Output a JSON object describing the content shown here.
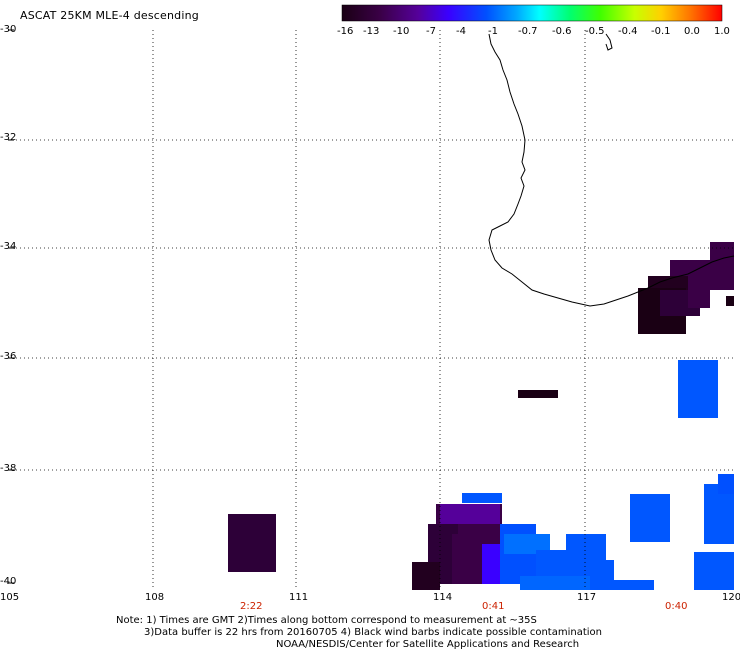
{
  "title": "ASCAT 25KM MLE-4 descending",
  "colorbar": {
    "labels": [
      "-16",
      "-13",
      "-10",
      "-7",
      "-4",
      "-1",
      "-0.7",
      "-0.6",
      "-0.5",
      "-0.4",
      "-0.1",
      "0.0",
      "1.0"
    ],
    "colors": [
      "#200010",
      "#3a0046",
      "#55009a",
      "#3a00ff",
      "#0050ff",
      "#00a8ff",
      "#00ffff",
      "#00ff70",
      "#40ff00",
      "#c8ff00",
      "#ffd000",
      "#ff7000",
      "#ff0000"
    ]
  },
  "axes": {
    "x_ticks": [
      "105",
      "108",
      "111",
      "114",
      "117",
      "120"
    ],
    "y_ticks": [
      "-30",
      "-32",
      "-34",
      "-36",
      "-38",
      "-40"
    ]
  },
  "time_labels": [
    "2:22",
    "0:41",
    "0:40"
  ],
  "notes": {
    "line1": "Note: 1) Times are GMT 2)Times along bottom correspond to measurement at ~35S",
    "line2": "3)Data buffer is 22 hrs from 20160705 4) Black wind barbs indicate possible contamination",
    "line3": "NOAA/NESDIS/Center for Satellite Applications and Research"
  }
}
